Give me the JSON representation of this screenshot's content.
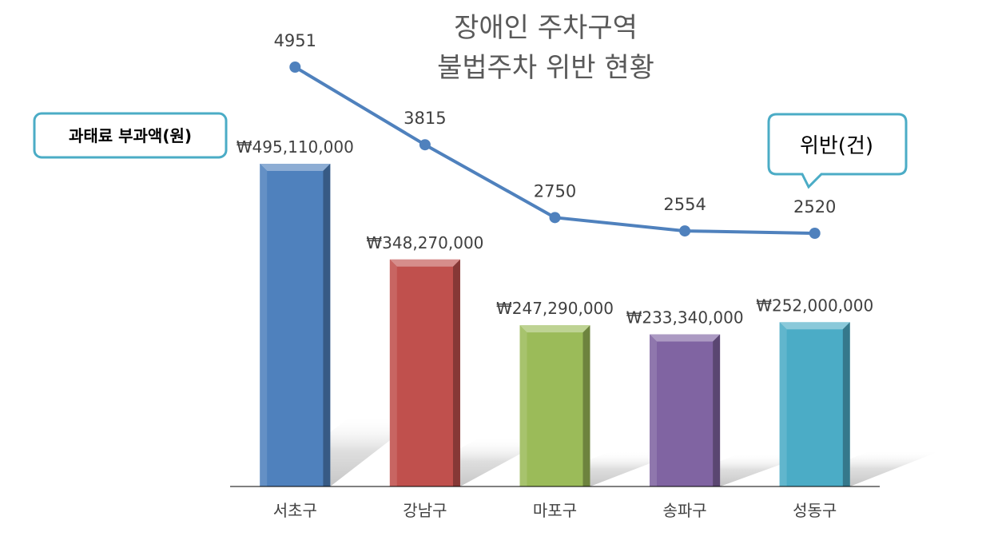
{
  "chart_data": {
    "type": "bar",
    "title": [
      "장애인 주차구역",
      "불법주차 위반 현황"
    ],
    "categories": [
      "서초구",
      "강남구",
      "마포구",
      "송파구",
      "성동구"
    ],
    "series": [
      {
        "name": "과태료 부과액(원)",
        "kind": "bar",
        "values": [
          495110000,
          348270000,
          247290000,
          233340000,
          252000000
        ],
        "labels": [
          "₩495,110,000",
          "₩348,270,000",
          "₩247,290,000",
          "₩233,340,000",
          "₩252,000,000"
        ],
        "colors": [
          "#4f81bd",
          "#c0504d",
          "#9bbb59",
          "#8064a2",
          "#4bacc6"
        ]
      },
      {
        "name": "위반(건)",
        "kind": "line",
        "values": [
          4951,
          3815,
          2750,
          2554,
          2520
        ],
        "labels": [
          "4951",
          "3815",
          "2750",
          "2554",
          "2520"
        ],
        "color": "#4f81bd"
      }
    ],
    "legend": {
      "left_callout": "과태료 부과액(원)",
      "right_callout": "위반(건)"
    },
    "grid": false
  }
}
